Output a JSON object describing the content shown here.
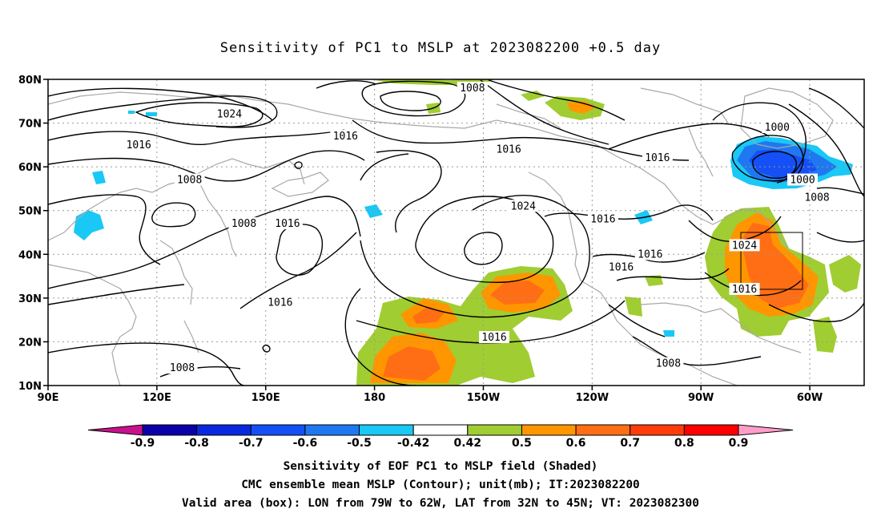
{
  "title": "Sensitivity of PC1 to MSLP at 2023082200 +0.5 day",
  "axes": {
    "lat_ticks": [
      "80N",
      "70N",
      "60N",
      "50N",
      "40N",
      "30N",
      "20N",
      "10N"
    ],
    "lon_ticks": [
      "90E",
      "120E",
      "150E",
      "180",
      "150W",
      "120W",
      "90W",
      "60W"
    ]
  },
  "contour_labels": [
    {
      "text": "1008",
      "lon": 207,
      "lat": 78
    },
    {
      "text": "1024",
      "lon": 140,
      "lat": 72
    },
    {
      "text": "1016",
      "lon": 115,
      "lat": 65
    },
    {
      "text": "1016",
      "lon": 172,
      "lat": 67
    },
    {
      "text": "1016",
      "lon": 217,
      "lat": 64
    },
    {
      "text": "1016",
      "lon": 258,
      "lat": 62
    },
    {
      "text": "1000",
      "lon": 291,
      "lat": 69
    },
    {
      "text": "1000",
      "lon": 298,
      "lat": 57
    },
    {
      "text": "1008",
      "lon": 302,
      "lat": 53
    },
    {
      "text": "1008",
      "lon": 129,
      "lat": 57
    },
    {
      "text": "1008",
      "lon": 144,
      "lat": 47
    },
    {
      "text": "1016",
      "lon": 156,
      "lat": 47
    },
    {
      "text": "1024",
      "lon": 221,
      "lat": 51
    },
    {
      "text": "1016",
      "lon": 243,
      "lat": 48
    },
    {
      "text": "1016",
      "lon": 256,
      "lat": 40
    },
    {
      "text": "1016",
      "lon": 248,
      "lat": 37
    },
    {
      "text": "1024",
      "lon": 282,
      "lat": 42
    },
    {
      "text": "1016",
      "lon": 282,
      "lat": 32
    },
    {
      "text": "1016",
      "lon": 154,
      "lat": 29
    },
    {
      "text": "1016",
      "lon": 213,
      "lat": 21
    },
    {
      "text": "1008",
      "lon": 127,
      "lat": 14
    },
    {
      "text": "1008",
      "lon": 261,
      "lat": 15
    }
  ],
  "valid_box": {
    "lon_min": 281,
    "lon_max": 298,
    "lat_min": 32,
    "lat_max": 45
  },
  "colorbar": {
    "labels": [
      "-0.9",
      "-0.8",
      "-0.7",
      "-0.6",
      "-0.5",
      "-0.42",
      "0.42",
      "0.5",
      "0.6",
      "0.7",
      "0.8",
      "0.9"
    ],
    "colors": [
      "#0a00a8",
      "#0a28e0",
      "#1450f5",
      "#1f78f0",
      "#19c8f5",
      "#ffffff",
      "#a0cd32",
      "#ff9600",
      "#ff6e14",
      "#ff3c0a",
      "#ff0000"
    ],
    "low_color": "#c8128c",
    "high_color": "#ff9ec8"
  },
  "caption": {
    "line1": "Sensitivity of EOF PC1 to MSLP field (Shaded)",
    "line2": "CMC ensemble mean MSLP (Contour); unit(mb); IT:2023082200",
    "line3": "Valid area (box): LON from 79W to 62W, LAT from 32N to 45N; VT: 2023082300"
  }
}
